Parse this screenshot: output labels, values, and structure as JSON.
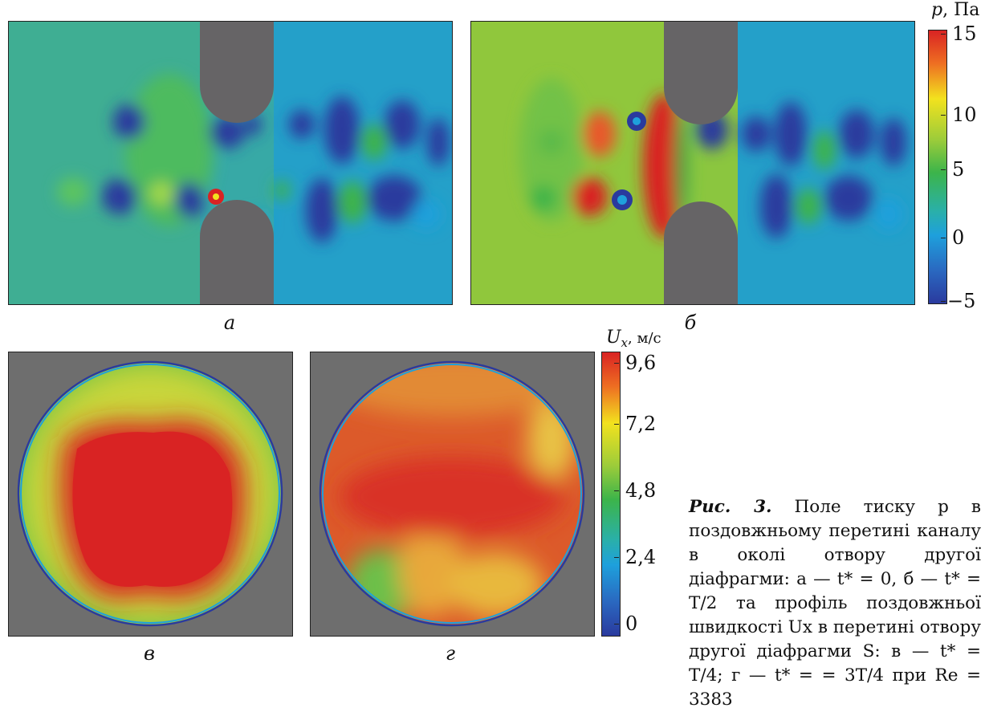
{
  "panels": {
    "a": {
      "label": "а"
    },
    "b": {
      "label": "б"
    },
    "v": {
      "label": "в"
    },
    "g": {
      "label": "г"
    }
  },
  "colorbar_pressure": {
    "symbol": "p",
    "unit": ", Па",
    "ticks": [
      "15",
      "10",
      "5",
      "0",
      "−5"
    ],
    "range": [
      -5,
      15
    ]
  },
  "colorbar_velocity": {
    "symbol": "U",
    "subscript": "x",
    "unit": ", м/с",
    "ticks": [
      "9,6",
      "7,2",
      "4,8",
      "2,4",
      "0"
    ],
    "range": [
      0,
      9.6
    ]
  },
  "caption": {
    "lead": "Рис. 3.",
    "text": " Поле тиску p в поздовжньому перетині каналу в околі отвору другої діафрагми: а — t* = 0, б — t* = T/2 та профіль поздовжньої швидкості Ux в перетині отвору другої діафрагми S: в — t* = T/4; г — t* = = 3T/4 при Re = 3383"
  },
  "colors": {
    "obstacle": "#666466",
    "background_grey": "#6e6e6e",
    "cmap": [
      "#2a3a9e",
      "#1ea0dc",
      "#3cb44a",
      "#f2e21e",
      "#d92323"
    ]
  }
}
